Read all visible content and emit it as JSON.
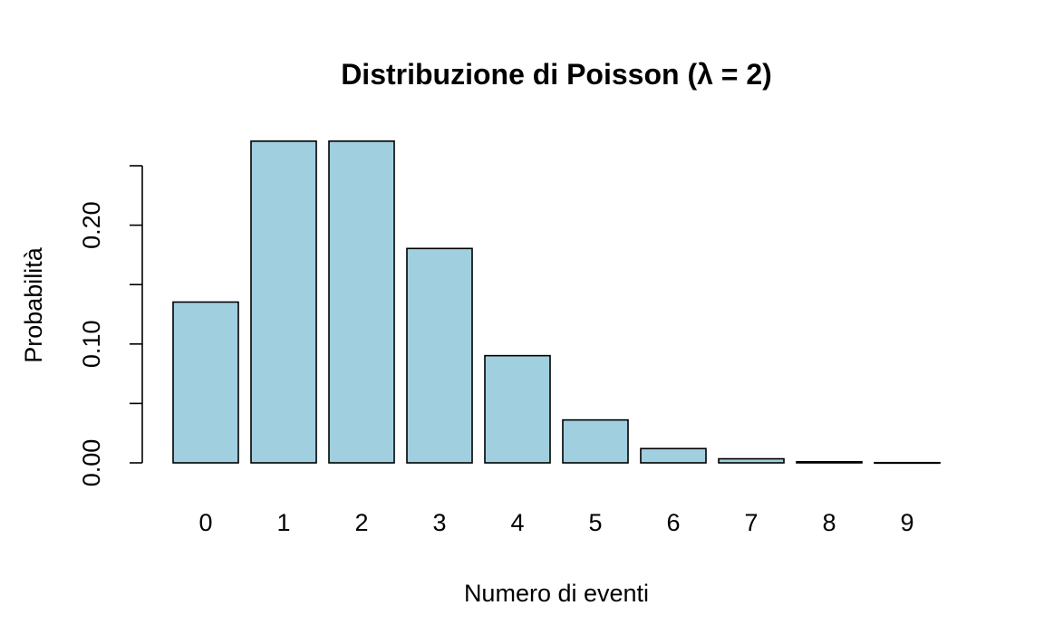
{
  "chart_data": {
    "type": "bar",
    "title": "Distribuzione di Poisson (λ = 2)",
    "xlabel": "Numero di eventi",
    "ylabel": "Probabilità",
    "categories": [
      "0",
      "1",
      "2",
      "3",
      "4",
      "5",
      "6",
      "7",
      "8",
      "9"
    ],
    "values": [
      0.1353,
      0.2707,
      0.2707,
      0.1804,
      0.0902,
      0.0361,
      0.012,
      0.0034,
      0.0009,
      0.0002
    ],
    "ylim": [
      0,
      0.25
    ],
    "yticks": [
      0,
      0.05,
      0.1,
      0.15,
      0.2,
      0.25
    ],
    "ytick_labels": [
      "0.00",
      "",
      "0.10",
      "",
      "0.20",
      ""
    ],
    "bar_color": "#a0cfe0",
    "grid": false,
    "legend": "none"
  }
}
